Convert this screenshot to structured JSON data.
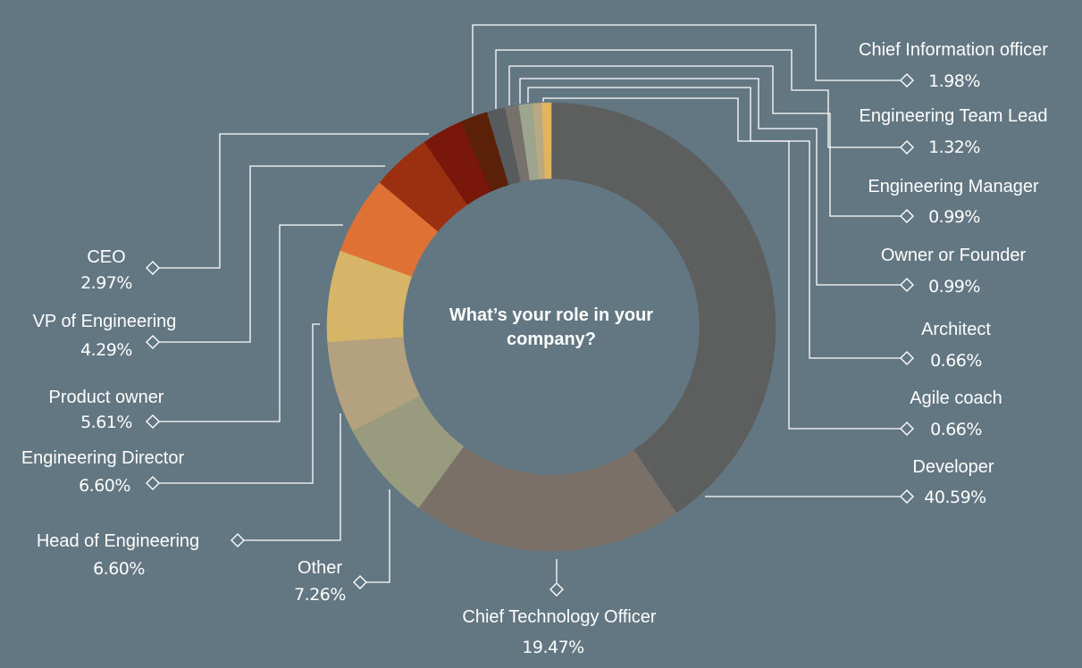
{
  "chart_data": {
    "type": "pie",
    "donut": true,
    "center_title_lines": [
      "What’s your role in your",
      "company?"
    ],
    "slices": [
      {
        "label": "Developer",
        "value_label": "40.59%",
        "value": 40.59,
        "color": "#5d5f5e"
      },
      {
        "label": "Chief Technology Officer",
        "value_label": "19.47%",
        "value": 19.47,
        "color": "#7a7068"
      },
      {
        "label": "Other",
        "value_label": "7.26%",
        "value": 7.26,
        "color": "#999b7e"
      },
      {
        "label": "Head of Engineering",
        "value_label": "6.60%",
        "value": 6.6,
        "color": "#b4a17f"
      },
      {
        "label": "Engineering Director",
        "value_label": "6.60%",
        "value": 6.6,
        "color": "#d6b468"
      },
      {
        "label": "Product owner",
        "value_label": "5.61%",
        "value": 5.61,
        "color": "#e07135"
      },
      {
        "label": "VP of Engineering",
        "value_label": "4.29%",
        "value": 4.29,
        "color": "#9b3010"
      },
      {
        "label": "CEO",
        "value_label": "2.97%",
        "value": 2.97,
        "color": "#7a170b"
      },
      {
        "label": "Chief Information officer",
        "value_label": "1.98%",
        "value": 1.98,
        "color": "#5a2008"
      },
      {
        "label": "Engineering Team Lead",
        "value_label": "1.32%",
        "value": 1.32,
        "color": "#575b5e"
      },
      {
        "label": "Engineering Manager",
        "value_label": "0.99%",
        "value": 0.99,
        "color": "#77716c"
      },
      {
        "label": "Owner or Founder",
        "value_label": "0.99%",
        "value": 0.99,
        "color": "#9ea58e"
      },
      {
        "label": "Architect",
        "value_label": "0.66%",
        "value": 0.66,
        "color": "#b8a982"
      },
      {
        "label": "Agile coach",
        "value_label": "0.66%",
        "value": 0.66,
        "color": "#e3b45e"
      }
    ],
    "legend": "callout labels with leader lines"
  }
}
